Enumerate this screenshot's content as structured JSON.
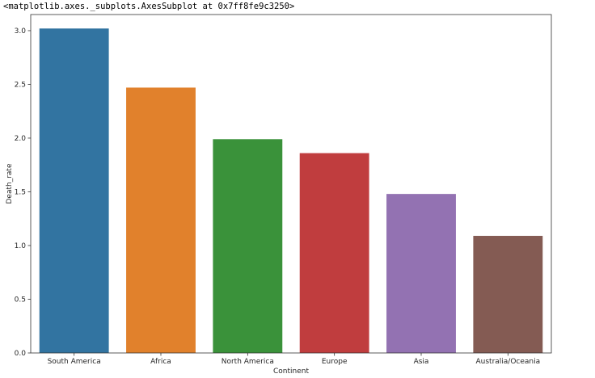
{
  "output_repr": "<matplotlib.axes._subplots.AxesSubplot at 0x7ff8fe9c3250>",
  "chart_data": {
    "type": "bar",
    "categories": [
      "South America",
      "Africa",
      "North America",
      "Europe",
      "Asia",
      "Australia/Oceania"
    ],
    "values": [
      3.02,
      2.47,
      1.99,
      1.86,
      1.48,
      1.09
    ],
    "colors": [
      "#3274a1",
      "#e1812c",
      "#3a923a",
      "#c03d3e",
      "#9372b2",
      "#845b53"
    ],
    "xlabel": "Continent",
    "ylabel": "Death_rate",
    "ylim": [
      0,
      3.15
    ],
    "yticks": [
      0.0,
      0.5,
      1.0,
      1.5,
      2.0,
      2.5,
      3.0
    ],
    "ytick_labels": [
      "0.0",
      "0.5",
      "1.0",
      "1.5",
      "2.0",
      "2.5",
      "3.0"
    ],
    "grid": false,
    "legend": "none"
  }
}
